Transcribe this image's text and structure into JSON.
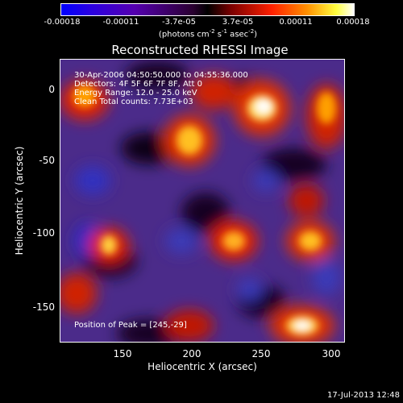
{
  "colorbar": {
    "ticks": [
      "-0.00018",
      "-0.00011",
      "-3.7e-05",
      "3.7e-05",
      "0.00011",
      "0.00018"
    ],
    "unit_prefix": "(photons cm",
    "unit_exp1": "-2",
    "unit_mid1": " s",
    "unit_exp2": "-1",
    "unit_mid2": " asec",
    "unit_exp3": "-2",
    "unit_suffix": ")"
  },
  "title": "Reconstructed RHESSI Image",
  "info": {
    "line1": "30-Apr-2006 04:50:50.000 to 04:55:36.000",
    "line2": "Detectors: 4F 5F 6F 7F 8F, Att 0",
    "line3": "Energy Range: 12.0 - 25.0 keV",
    "line4": "Clean     Total counts: 7.73E+03"
  },
  "peak": "Position of Peak = [245,-29]",
  "x_axis": {
    "label": "Heliocentric X (arcsec)",
    "ticks": [
      "150",
      "200",
      "250",
      "300"
    ]
  },
  "y_axis": {
    "label": "Heliocentric Y (arcsec)",
    "ticks": [
      "0",
      "-50",
      "-100",
      "-150"
    ]
  },
  "timestamp": "17-Jul-2013 12:48"
}
